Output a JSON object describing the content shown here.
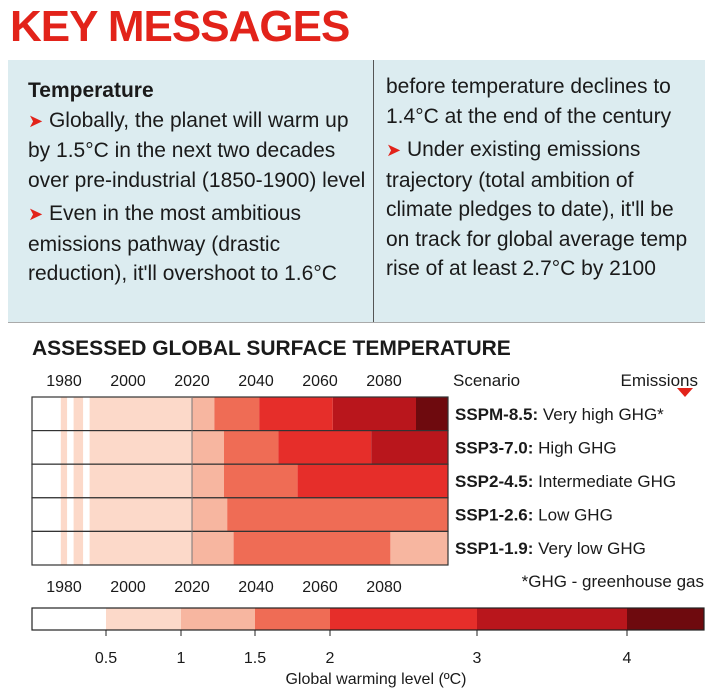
{
  "header": {
    "title": "KEY MESSAGES"
  },
  "messages": {
    "left": {
      "heading": "Temperature",
      "bullet1": "Globally, the planet will warm up by 1.5°C in the next two decades over pre-industrial (1850-1900) level",
      "bullet2": "Even in the most ambitious emissions pathway (drastic reduction), it'll overshoot to 1.6°C"
    },
    "right": {
      "cont": "before temperature declines to 1.4°C at the end of the century",
      "bullet3": "Under existing emissions trajectory (total ambition of climate pledges to date), it'll be on track for global average temp rise of at least 2.7°C by 2100"
    },
    "arrow_glyph": "➤"
  },
  "chart_data": {
    "type": "heatmap",
    "title": "ASSESSED GLOBAL SURFACE TEMPERATURE",
    "x_ticks": [
      1980,
      2000,
      2020,
      2040,
      2060,
      2080
    ],
    "xlim": [
      1970,
      2100
    ],
    "scenario_header": "Scenario",
    "emissions_header": "Emissions",
    "scenarios": [
      {
        "code": "SSPM-8.5:",
        "desc": "Very high GHG*",
        "segments": [
          [
            1970,
            1979,
            0.3
          ],
          [
            1979,
            1981,
            0.5
          ],
          [
            1981,
            1983,
            0.3
          ],
          [
            1983,
            1986,
            0.5
          ],
          [
            1986,
            1988,
            0.3
          ],
          [
            1988,
            1990,
            0.5
          ],
          [
            1990,
            2000,
            0.7
          ],
          [
            2000,
            2010,
            0.8
          ],
          [
            2010,
            2020,
            0.9
          ],
          [
            2020,
            2027,
            1.3
          ],
          [
            2027,
            2041,
            1.7
          ],
          [
            2041,
            2064,
            2.5
          ],
          [
            2064,
            2090,
            3.2
          ],
          [
            2090,
            2100,
            4.2
          ]
        ]
      },
      {
        "code": "SSP3-7.0:",
        "desc": "High GHG",
        "segments": [
          [
            1970,
            1979,
            0.3
          ],
          [
            1979,
            1981,
            0.5
          ],
          [
            1981,
            1983,
            0.3
          ],
          [
            1983,
            1986,
            0.5
          ],
          [
            1986,
            1988,
            0.3
          ],
          [
            1988,
            1990,
            0.5
          ],
          [
            1990,
            2000,
            0.7
          ],
          [
            2000,
            2010,
            0.8
          ],
          [
            2010,
            2020,
            0.9
          ],
          [
            2020,
            2030,
            1.3
          ],
          [
            2030,
            2047,
            1.7
          ],
          [
            2047,
            2076,
            2.5
          ],
          [
            2076,
            2100,
            3.2
          ]
        ]
      },
      {
        "code": "SSP2-4.5:",
        "desc": "Intermediate GHG",
        "segments": [
          [
            1970,
            1979,
            0.3
          ],
          [
            1979,
            1981,
            0.5
          ],
          [
            1981,
            1983,
            0.3
          ],
          [
            1983,
            1986,
            0.5
          ],
          [
            1986,
            1988,
            0.3
          ],
          [
            1988,
            1990,
            0.5
          ],
          [
            1990,
            2000,
            0.7
          ],
          [
            2000,
            2010,
            0.8
          ],
          [
            2010,
            2020,
            0.9
          ],
          [
            2020,
            2030,
            1.3
          ],
          [
            2030,
            2053,
            1.7
          ],
          [
            2053,
            2100,
            2.5
          ]
        ]
      },
      {
        "code": "SSP1-2.6:",
        "desc": "Low GHG",
        "segments": [
          [
            1970,
            1979,
            0.3
          ],
          [
            1979,
            1981,
            0.5
          ],
          [
            1981,
            1983,
            0.3
          ],
          [
            1983,
            1986,
            0.5
          ],
          [
            1986,
            1988,
            0.3
          ],
          [
            1988,
            1990,
            0.5
          ],
          [
            1990,
            2000,
            0.7
          ],
          [
            2000,
            2010,
            0.8
          ],
          [
            2010,
            2020,
            0.9
          ],
          [
            2020,
            2031,
            1.3
          ],
          [
            2031,
            2100,
            1.7
          ]
        ]
      },
      {
        "code": "SSP1-1.9:",
        "desc": "Very low GHG",
        "segments": [
          [
            1970,
            1979,
            0.3
          ],
          [
            1979,
            1981,
            0.5
          ],
          [
            1981,
            1983,
            0.3
          ],
          [
            1983,
            1986,
            0.5
          ],
          [
            1986,
            1988,
            0.3
          ],
          [
            1988,
            1990,
            0.5
          ],
          [
            1990,
            2000,
            0.7
          ],
          [
            2000,
            2010,
            0.8
          ],
          [
            2010,
            2020,
            0.9
          ],
          [
            2020,
            2033,
            1.3
          ],
          [
            2033,
            2082,
            1.7
          ],
          [
            2082,
            2100,
            1.2
          ]
        ]
      }
    ],
    "footnote": "*GHG - greenhouse gas",
    "colorbar": {
      "label": "Global warming level (ºC)",
      "ticks": [
        {
          "value": 0.5,
          "text": "0.5"
        },
        {
          "value": 1,
          "text": "1"
        },
        {
          "value": 1.5,
          "text": "1.5"
        },
        {
          "value": 2,
          "text": "2"
        },
        {
          "value": 3,
          "text": "3"
        },
        {
          "value": 4,
          "text": "4"
        }
      ],
      "bins": [
        {
          "lo": 0.0,
          "hi": 0.5,
          "color": "#ffffff"
        },
        {
          "lo": 0.5,
          "hi": 1.0,
          "color": "#fcd9c9"
        },
        {
          "lo": 1.0,
          "hi": 1.5,
          "color": "#f7b6a0"
        },
        {
          "lo": 1.5,
          "hi": 2.0,
          "color": "#ef6c55"
        },
        {
          "lo": 2.0,
          "hi": 3.0,
          "color": "#e62e2a"
        },
        {
          "lo": 3.0,
          "hi": 4.0,
          "color": "#b9161c"
        },
        {
          "lo": 4.0,
          "hi": 5.0,
          "color": "#6e0a0e"
        }
      ]
    }
  }
}
